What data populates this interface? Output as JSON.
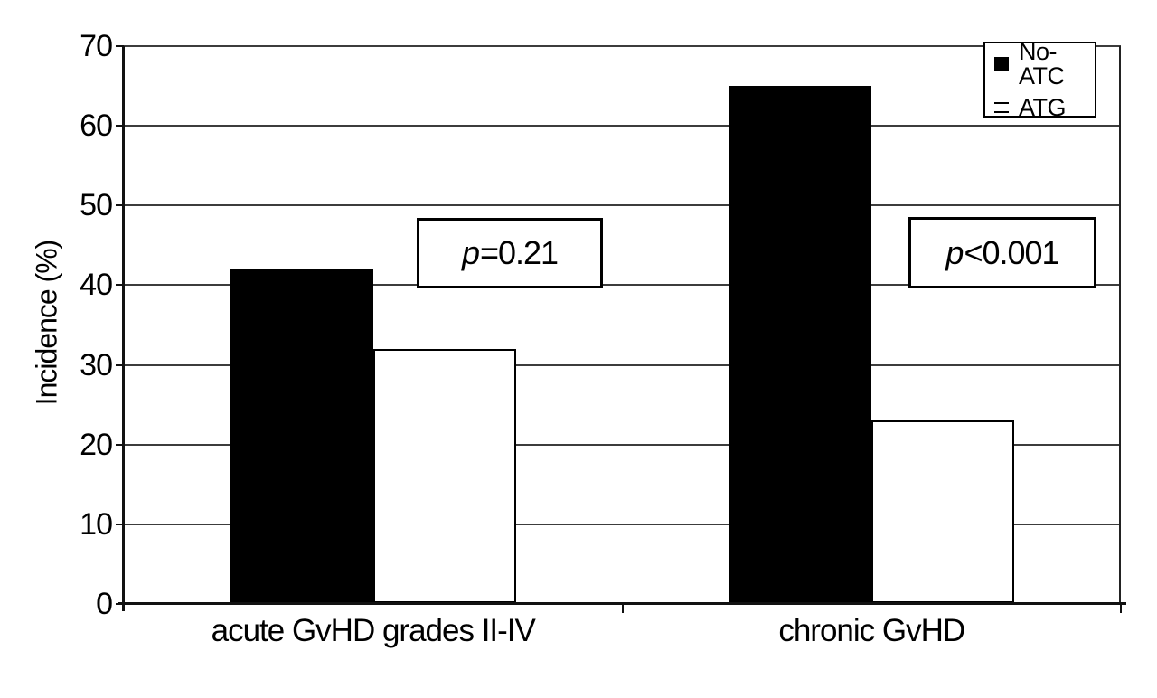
{
  "chart_data": {
    "type": "bar",
    "title": "",
    "categories": [
      "acute GvHD grades II-IV",
      "chronic GvHD"
    ],
    "series": [
      {
        "name": "No-ATC",
        "values": [
          42,
          65
        ],
        "fill": "#000000"
      },
      {
        "name": "ATG",
        "values": [
          32,
          23
        ],
        "fill": "#ffffff"
      }
    ],
    "xlabel": "",
    "ylabel": "Incidence (%)",
    "ylim": [
      0,
      70
    ],
    "yticks": [
      0,
      10,
      20,
      30,
      40,
      50,
      60,
      70
    ],
    "grid": "horizontal gridlines every 10",
    "legend_position": "top-right inside plot",
    "annotations": [
      {
        "symbol": "p",
        "text": "=0.21",
        "category": "acute GvHD grades II-IV"
      },
      {
        "symbol": "p",
        "text": "<0.001",
        "category": "chronic GvHD"
      }
    ]
  },
  "colors": {
    "bar_no_atc": "#000000",
    "bar_atg": "#ffffff",
    "grid": "#3c3c3c",
    "axis": "#111111",
    "background": "#ffffff"
  }
}
